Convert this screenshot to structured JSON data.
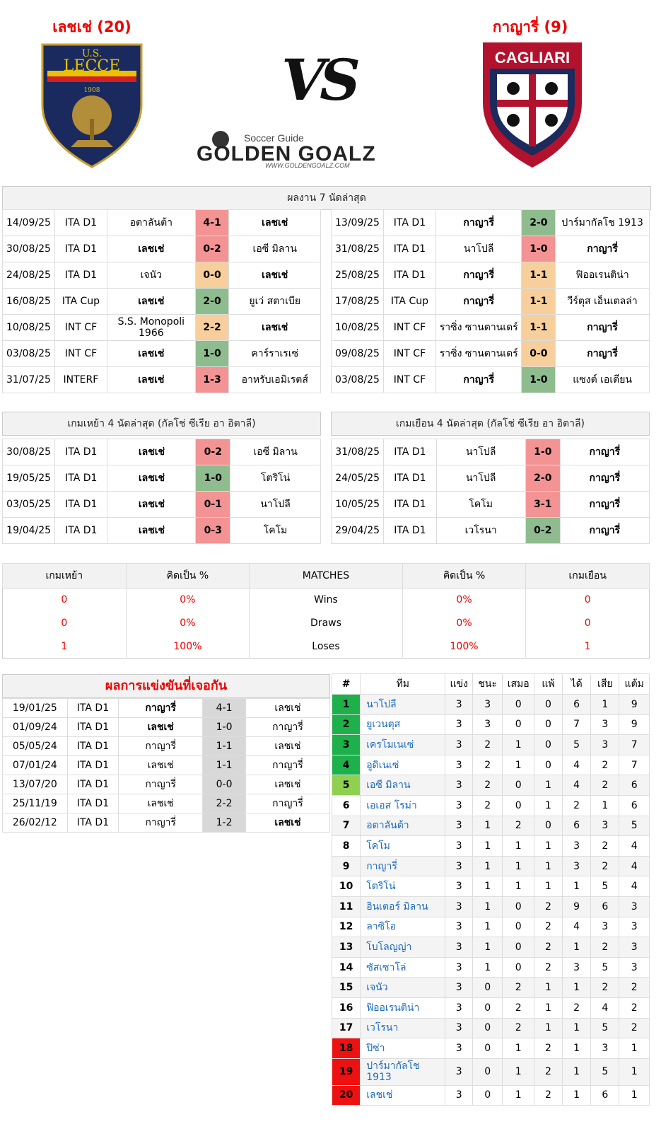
{
  "header": {
    "home_title": "เลชเช่ (20)",
    "away_title": "กาญารี่ (9)",
    "vs": "VS",
    "brand_tag": "Soccer Guide",
    "brand_name": "GOLDEN GOALZ",
    "brand_url": "WWW.GOLDENGOALZ.COM",
    "home_logo_text": [
      "U.S.",
      "LECCE",
      "1908"
    ],
    "away_logo_text": "CAGLIARI"
  },
  "recent_form": {
    "title": "ผลงาน 7 นัดล่าสุด",
    "home": [
      {
        "date": "14/09/25",
        "comp": "ITA D1",
        "home": "อตาลันต้า",
        "score": "4-1",
        "away": "เลชเช่",
        "res": "loss",
        "bold": "away"
      },
      {
        "date": "30/08/25",
        "comp": "ITA D1",
        "home": "เลชเช่",
        "score": "0-2",
        "away": "เอซี มิลาน",
        "res": "loss",
        "bold": "home"
      },
      {
        "date": "24/08/25",
        "comp": "ITA D1",
        "home": "เจนัว",
        "score": "0-0",
        "away": "เลชเช่",
        "res": "draw",
        "bold": "away"
      },
      {
        "date": "16/08/25",
        "comp": "ITA Cup",
        "home": "เลชเช่",
        "score": "2-0",
        "away": "ยูเว่ สตาเบีย",
        "res": "win",
        "bold": "home"
      },
      {
        "date": "10/08/25",
        "comp": "INT CF",
        "home": "S.S. Monopoli 1966",
        "score": "2-2",
        "away": "เลชเช่",
        "res": "draw",
        "bold": "away"
      },
      {
        "date": "03/08/25",
        "comp": "INT CF",
        "home": "เลชเช่",
        "score": "1-0",
        "away": "คาร์ราเรเซ่",
        "res": "win",
        "bold": "home"
      },
      {
        "date": "31/07/25",
        "comp": "INTERF",
        "home": "เลชเช่",
        "score": "1-3",
        "away": "อาหรับเอมิเรตส์",
        "res": "loss",
        "bold": "home"
      }
    ],
    "away": [
      {
        "date": "13/09/25",
        "comp": "ITA D1",
        "home": "กาญารี่",
        "score": "2-0",
        "away": "ปาร์มากัลโช 1913",
        "res": "win",
        "bold": "home"
      },
      {
        "date": "31/08/25",
        "comp": "ITA D1",
        "home": "นาโปลี",
        "score": "1-0",
        "away": "กาญารี่",
        "res": "loss",
        "bold": "away"
      },
      {
        "date": "25/08/25",
        "comp": "ITA D1",
        "home": "กาญารี่",
        "score": "1-1",
        "away": "ฟิออเรนติน่า",
        "res": "draw",
        "bold": "home"
      },
      {
        "date": "17/08/25",
        "comp": "ITA Cup",
        "home": "กาญารี่",
        "score": "1-1",
        "away": "วีร์ตุส เอ็นเตลล่า",
        "res": "draw",
        "bold": "home"
      },
      {
        "date": "10/08/25",
        "comp": "INT CF",
        "home": "ราซิ่ง ซานตานเดร์",
        "score": "1-1",
        "away": "กาญารี่",
        "res": "draw",
        "bold": "away"
      },
      {
        "date": "09/08/25",
        "comp": "INT CF",
        "home": "ราซิ่ง ซานตานเดร์",
        "score": "0-0",
        "away": "กาญารี่",
        "res": "draw",
        "bold": "away"
      },
      {
        "date": "03/08/25",
        "comp": "INT CF",
        "home": "กาญารี่",
        "score": "1-0",
        "away": "แซงต์ เอเตียน",
        "res": "win",
        "bold": "home"
      }
    ]
  },
  "league_form": {
    "home_title": "เกมเหย้า 4 นัดล่าสุด (กัลโช่ ซีเรีย อา อิตาลี)",
    "away_title": "เกมเยือน 4 นัดล่าสุด (กัลโช่ ซีเรีย อา อิตาลี)",
    "home": [
      {
        "date": "30/08/25",
        "comp": "ITA D1",
        "home": "เลชเช่",
        "score": "0-2",
        "away": "เอซี มิลาน",
        "res": "loss"
      },
      {
        "date": "19/05/25",
        "comp": "ITA D1",
        "home": "เลชเช่",
        "score": "1-0",
        "away": "โตริโน่",
        "res": "win"
      },
      {
        "date": "03/05/25",
        "comp": "ITA D1",
        "home": "เลชเช่",
        "score": "0-1",
        "away": "นาโปลี",
        "res": "loss"
      },
      {
        "date": "19/04/25",
        "comp": "ITA D1",
        "home": "เลชเช่",
        "score": "0-3",
        "away": "โคโม",
        "res": "loss"
      }
    ],
    "away": [
      {
        "date": "31/08/25",
        "comp": "ITA D1",
        "home": "นาโปลี",
        "score": "1-0",
        "away": "กาญารี่",
        "res": "loss"
      },
      {
        "date": "24/05/25",
        "comp": "ITA D1",
        "home": "นาโปลี",
        "score": "2-0",
        "away": "กาญารี่",
        "res": "loss"
      },
      {
        "date": "10/05/25",
        "comp": "ITA D1",
        "home": "โคโม",
        "score": "3-1",
        "away": "กาญารี่",
        "res": "loss"
      },
      {
        "date": "29/04/25",
        "comp": "ITA D1",
        "home": "เวโรนา",
        "score": "0-2",
        "away": "กาญารี่",
        "res": "win"
      }
    ]
  },
  "stats": {
    "headers": [
      "เกมเหย้า",
      "คิดเป็น %",
      "MATCHES",
      "คิดเป็น %",
      "เกมเยือน"
    ],
    "rows": [
      {
        "home": "0",
        "home_pct": "0%",
        "label": "Wins",
        "away_pct": "0%",
        "away": "0"
      },
      {
        "home": "0",
        "home_pct": "0%",
        "label": "Draws",
        "away_pct": "0%",
        "away": "0"
      },
      {
        "home": "1",
        "home_pct": "100%",
        "label": "Loses",
        "away_pct": "100%",
        "away": "1"
      }
    ]
  },
  "h2h": {
    "title": "ผลการแข่งขันที่เจอกัน",
    "rows": [
      {
        "date": "19/01/25",
        "comp": "ITA D1",
        "home": "กาญารี่",
        "score": "4-1",
        "away": "เลชเช่",
        "bold": "home"
      },
      {
        "date": "01/09/24",
        "comp": "ITA D1",
        "home": "เลชเช่",
        "score": "1-0",
        "away": "กาญารี่",
        "bold": "home"
      },
      {
        "date": "05/05/24",
        "comp": "ITA D1",
        "home": "กาญารี่",
        "score": "1-1",
        "away": "เลชเช่",
        "bold": ""
      },
      {
        "date": "07/01/24",
        "comp": "ITA D1",
        "home": "เลชเช่",
        "score": "1-1",
        "away": "กาญารี่",
        "bold": ""
      },
      {
        "date": "13/07/20",
        "comp": "ITA D1",
        "home": "กาญารี่",
        "score": "0-0",
        "away": "เลชเช่",
        "bold": ""
      },
      {
        "date": "25/11/19",
        "comp": "ITA D1",
        "home": "เลชเช่",
        "score": "2-2",
        "away": "กาญารี่",
        "bold": ""
      },
      {
        "date": "26/02/12",
        "comp": "ITA D1",
        "home": "กาญารี่",
        "score": "1-2",
        "away": "เลชเช่",
        "bold": "away"
      }
    ]
  },
  "standings": {
    "headers": [
      "#",
      "ทีม",
      "แข่ง",
      "ชนะ",
      "เสมอ",
      "แพ้",
      "ได้",
      "เสีย",
      "แต้ม"
    ],
    "rows": [
      {
        "rank": "1",
        "team": "นาโปลี",
        "p": "3",
        "w": "3",
        "d": "0",
        "l": "0",
        "gf": "6",
        "ga": "1",
        "pts": "9",
        "zone": "g"
      },
      {
        "rank": "2",
        "team": "ยูเวนตุส",
        "p": "3",
        "w": "3",
        "d": "0",
        "l": "0",
        "gf": "7",
        "ga": "3",
        "pts": "9",
        "zone": "g"
      },
      {
        "rank": "3",
        "team": "เครโมเนเซ่",
        "p": "3",
        "w": "2",
        "d": "1",
        "l": "0",
        "gf": "5",
        "ga": "3",
        "pts": "7",
        "zone": "g"
      },
      {
        "rank": "4",
        "team": "อูดิเนเซ่",
        "p": "3",
        "w": "2",
        "d": "1",
        "l": "0",
        "gf": "4",
        "ga": "2",
        "pts": "7",
        "zone": "g"
      },
      {
        "rank": "5",
        "team": "เอซี มิลาน",
        "p": "3",
        "w": "2",
        "d": "0",
        "l": "1",
        "gf": "4",
        "ga": "2",
        "pts": "6",
        "zone": "lg"
      },
      {
        "rank": "6",
        "team": "เอเอส โรม่า",
        "p": "3",
        "w": "2",
        "d": "0",
        "l": "1",
        "gf": "2",
        "ga": "1",
        "pts": "6",
        "zone": ""
      },
      {
        "rank": "7",
        "team": "อตาลันต้า",
        "p": "3",
        "w": "1",
        "d": "2",
        "l": "0",
        "gf": "6",
        "ga": "3",
        "pts": "5",
        "zone": ""
      },
      {
        "rank": "8",
        "team": "โคโม",
        "p": "3",
        "w": "1",
        "d": "1",
        "l": "1",
        "gf": "3",
        "ga": "2",
        "pts": "4",
        "zone": ""
      },
      {
        "rank": "9",
        "team": "กาญารี่",
        "p": "3",
        "w": "1",
        "d": "1",
        "l": "1",
        "gf": "3",
        "ga": "2",
        "pts": "4",
        "zone": ""
      },
      {
        "rank": "10",
        "team": "โตริโน่",
        "p": "3",
        "w": "1",
        "d": "1",
        "l": "1",
        "gf": "1",
        "ga": "5",
        "pts": "4",
        "zone": ""
      },
      {
        "rank": "11",
        "team": "อินเตอร์ มิลาน",
        "p": "3",
        "w": "1",
        "d": "0",
        "l": "2",
        "gf": "9",
        "ga": "6",
        "pts": "3",
        "zone": ""
      },
      {
        "rank": "12",
        "team": "ลาซิโอ",
        "p": "3",
        "w": "1",
        "d": "0",
        "l": "2",
        "gf": "4",
        "ga": "3",
        "pts": "3",
        "zone": ""
      },
      {
        "rank": "13",
        "team": "โบโลญญ่า",
        "p": "3",
        "w": "1",
        "d": "0",
        "l": "2",
        "gf": "1",
        "ga": "2",
        "pts": "3",
        "zone": ""
      },
      {
        "rank": "14",
        "team": "ซัสเซาโล่",
        "p": "3",
        "w": "1",
        "d": "0",
        "l": "2",
        "gf": "3",
        "ga": "5",
        "pts": "3",
        "zone": ""
      },
      {
        "rank": "15",
        "team": "เจนัว",
        "p": "3",
        "w": "0",
        "d": "2",
        "l": "1",
        "gf": "1",
        "ga": "2",
        "pts": "2",
        "zone": ""
      },
      {
        "rank": "16",
        "team": "ฟิออเรนติน่า",
        "p": "3",
        "w": "0",
        "d": "2",
        "l": "1",
        "gf": "2",
        "ga": "4",
        "pts": "2",
        "zone": ""
      },
      {
        "rank": "17",
        "team": "เวโรนา",
        "p": "3",
        "w": "0",
        "d": "2",
        "l": "1",
        "gf": "1",
        "ga": "5",
        "pts": "2",
        "zone": ""
      },
      {
        "rank": "18",
        "team": "ปิซ่า",
        "p": "3",
        "w": "0",
        "d": "1",
        "l": "2",
        "gf": "1",
        "ga": "3",
        "pts": "1",
        "zone": "r"
      },
      {
        "rank": "19",
        "team": "ปาร์มากัลโช 1913",
        "p": "3",
        "w": "0",
        "d": "1",
        "l": "2",
        "gf": "1",
        "ga": "5",
        "pts": "1",
        "zone": "r"
      },
      {
        "rank": "20",
        "team": "เลชเช่",
        "p": "3",
        "w": "0",
        "d": "1",
        "l": "2",
        "gf": "1",
        "ga": "6",
        "pts": "1",
        "zone": "r"
      }
    ]
  },
  "colors": {
    "win": "#8fbc8f",
    "draw": "#f6cf9d",
    "loss": "#f39393",
    "accent_red": "#ee0000",
    "link_blue": "#1a6bbf"
  }
}
